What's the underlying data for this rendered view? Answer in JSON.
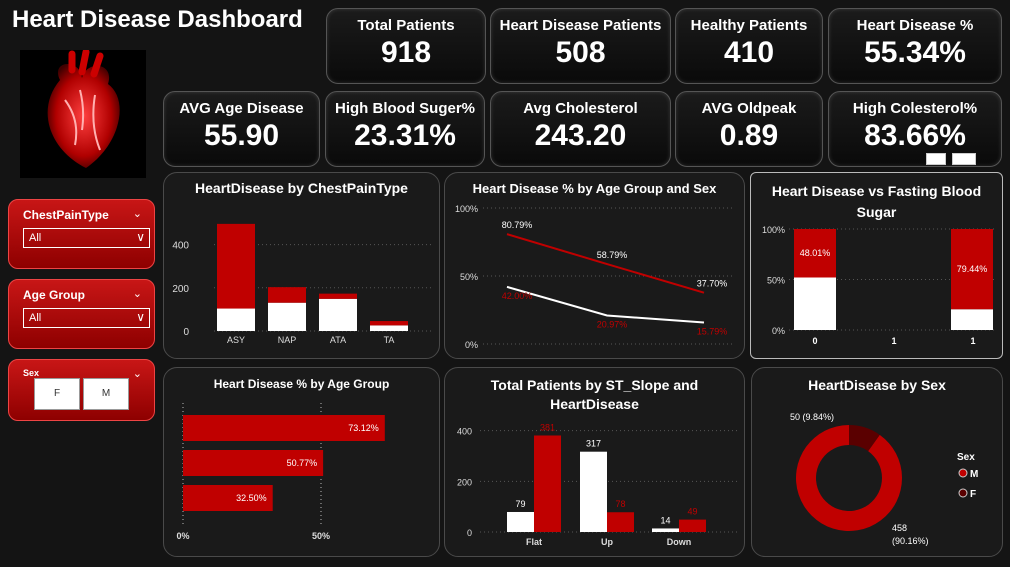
{
  "title": "Heart Disease Dashboard",
  "kpis_row1": [
    {
      "label": "Total Patients",
      "value": "918"
    },
    {
      "label": "Heart Disease Patients",
      "value": "508"
    },
    {
      "label": "Healthy Patients",
      "value": "410"
    },
    {
      "label": "Heart Disease %",
      "value": "55.34%"
    }
  ],
  "kpis_row2": [
    {
      "label": "AVG Age Disease",
      "value": "55.90"
    },
    {
      "label": "High Blood Suger%",
      "value": "23.31%"
    },
    {
      "label": "Avg Cholesterol",
      "value": "243.20"
    },
    {
      "label": "AVG Oldpeak",
      "value": "0.89"
    },
    {
      "label": "High Colesterol%",
      "value": "83.66%"
    }
  ],
  "slicers": {
    "chest": {
      "title": "ChestPainType",
      "value": "All"
    },
    "age": {
      "title": "Age Group",
      "value": "All"
    },
    "sex": {
      "title": "Sex",
      "options": [
        "F",
        "M"
      ]
    }
  },
  "colors": {
    "red": "#c00000",
    "white": "#ffffff",
    "grid": "#555555"
  },
  "charts": {
    "chest": {
      "title": "HeartDisease by ChestPainType"
    },
    "agesex": {
      "title": "Heart Disease % by Age Group and Sex"
    },
    "fbs": {
      "title": "Heart Disease vs Fasting Blood Sugar"
    },
    "agegroup": {
      "title": "Heart Disease % by Age Group"
    },
    "slope": {
      "title_line1": "Total Patients by ST_Slope and",
      "title_line2": "HeartDisease"
    },
    "sex": {
      "title": "HeartDisease by Sex"
    }
  },
  "chart_data": [
    {
      "type": "bar",
      "title": "HeartDisease by ChestPainType",
      "categories": [
        "ASY",
        "NAP",
        "ATA",
        "TA"
      ],
      "series": [
        {
          "values": [
            104,
            131,
            149,
            26
          ]
        },
        {
          "values": [
            392,
            72,
            24,
            20
          ]
        }
      ],
      "ylim": [
        0,
        500
      ],
      "yticks": [
        "0",
        "200",
        "400"
      ]
    },
    {
      "type": "line",
      "title": "Heart Disease % by Age Group and Sex",
      "x": [
        "1",
        "2",
        "3"
      ],
      "series": [
        {
          "values": [
            80.79,
            58.79,
            37.7
          ],
          "labels": [
            "80.79%",
            "58.79%",
            "37.70%"
          ]
        },
        {
          "values": [
            42.0,
            20.97,
            15.79
          ],
          "labels": [
            "42.00%",
            "20.97%",
            "15.79%"
          ]
        }
      ],
      "ylim": [
        0,
        100
      ],
      "yticks": [
        "0%",
        "50%",
        "100%"
      ]
    },
    {
      "type": "bar",
      "title": "Heart Disease vs Fasting Blood Sugar",
      "categories": [
        "0",
        "1"
      ],
      "series": [
        {
          "values": [
            51.99,
            20.56
          ]
        },
        {
          "values": [
            48.01,
            79.44
          ],
          "labels": [
            "48.01%",
            "79.44%"
          ]
        }
      ],
      "xticks": [
        "0",
        "1",
        "1"
      ],
      "yticks": [
        "0%",
        "50%",
        "100%"
      ]
    },
    {
      "type": "bar",
      "title": "Heart Disease % by Age Group",
      "values": [
        73.12,
        50.77,
        32.5
      ],
      "labels": [
        "73.12%",
        "50.77%",
        "32.50%"
      ],
      "xticks": [
        "0%",
        "50%"
      ]
    },
    {
      "type": "bar",
      "title": "Total Patients by ST_Slope and HeartDisease",
      "categories": [
        "Flat",
        "Up",
        "Down"
      ],
      "series": [
        {
          "values": [
            79,
            317,
            14
          ]
        },
        {
          "values": [
            381,
            78,
            49
          ]
        }
      ],
      "ylim": [
        0,
        450
      ],
      "yticks": [
        "0",
        "200",
        "400"
      ]
    },
    {
      "type": "pie",
      "title": "HeartDisease by Sex",
      "slices": [
        {
          "label": "458 (90.16%)",
          "value": 458
        },
        {
          "label": "50 (9.84%)",
          "value": 50
        }
      ],
      "legend": {
        "title": "Sex",
        "items": [
          "M",
          "F"
        ]
      }
    }
  ]
}
